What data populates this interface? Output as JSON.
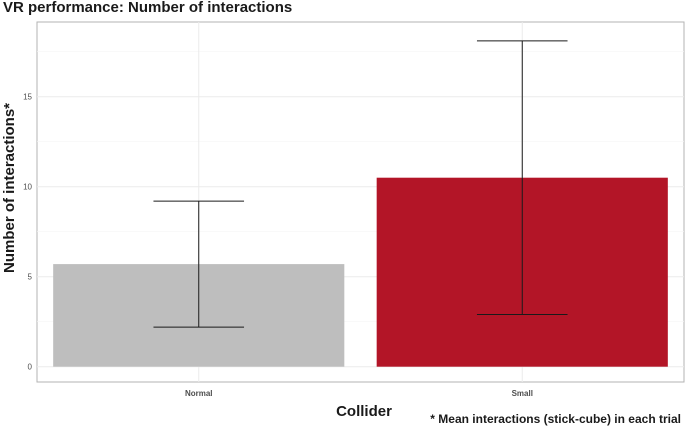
{
  "chart_data": {
    "type": "bar",
    "title": "VR performance: Number of interactions",
    "xlabel": "Collider",
    "ylabel": "Number of interactions*",
    "caption": "* Mean interactions (stick-cube) in each trial",
    "categories": [
      "Normal",
      "Small"
    ],
    "values": [
      5.7,
      10.5
    ],
    "error_low": [
      2.2,
      2.9
    ],
    "error_high": [
      9.2,
      18.1
    ],
    "colors": [
      "#bebebe",
      "#b31527"
    ],
    "ylim": [
      -0.85,
      19.15
    ],
    "yticks": [
      0,
      5,
      10,
      15
    ],
    "grid": true
  }
}
